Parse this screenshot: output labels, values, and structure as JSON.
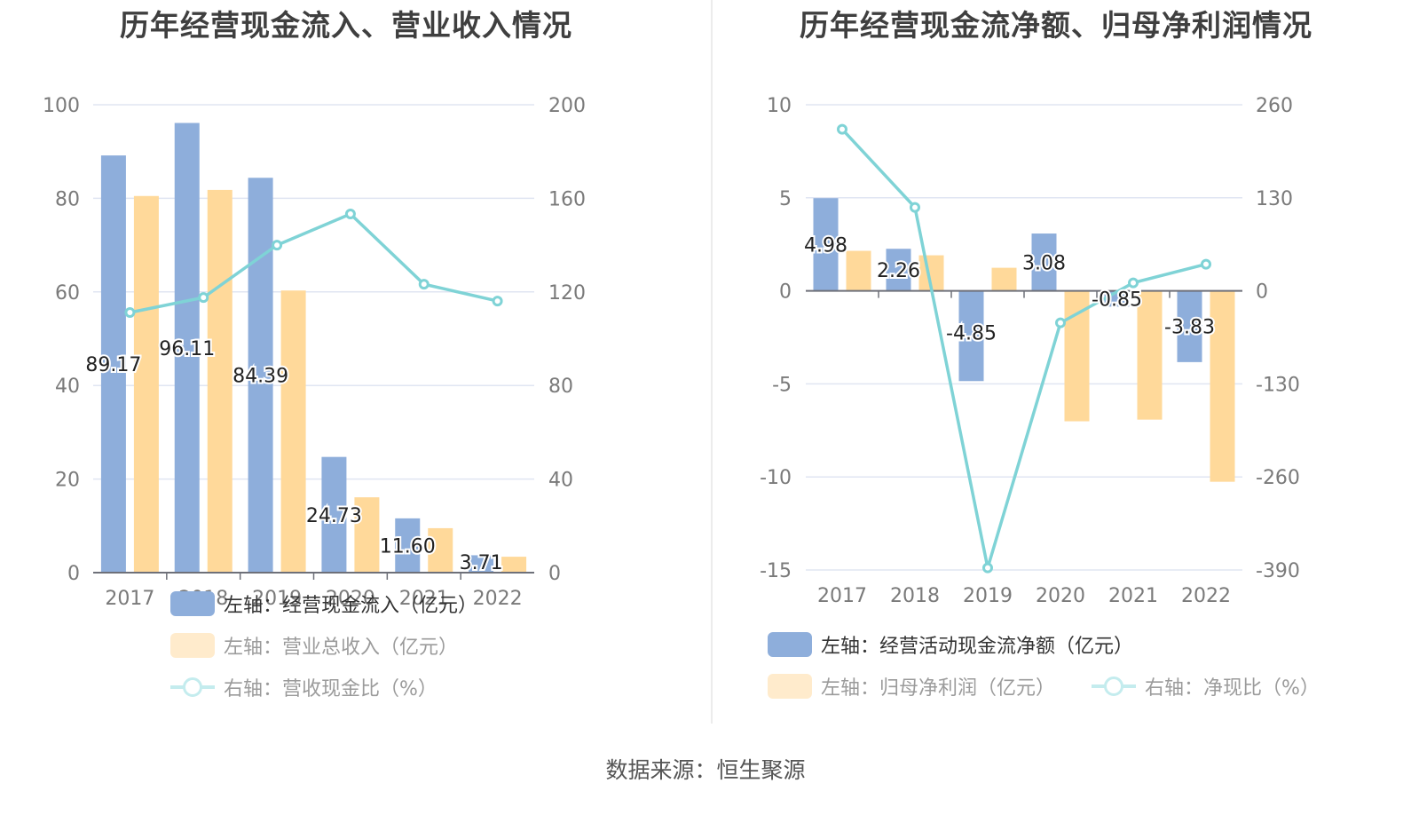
{
  "left_chart": {
    "title": "历年经营现金流入、营业收入情况",
    "legend": [
      {
        "label": "左轴：经营现金流入（亿元）",
        "color": "#8eaedb",
        "type": "bar",
        "active": true
      },
      {
        "label": "左轴：营业总收入（亿元）",
        "color": "#ffdb9d",
        "type": "bar",
        "active": false
      },
      {
        "label": "右轴：营收现金比（%）",
        "color": "#7fd3d6",
        "type": "line",
        "active": false
      }
    ]
  },
  "right_chart": {
    "title": "历年经营现金流净额、归母净利润情况",
    "legend": [
      {
        "label": "左轴：经营活动现金流净额（亿元）",
        "color": "#8eaedb",
        "type": "bar",
        "active": true
      },
      {
        "label": "左轴：归母净利润（亿元）",
        "color": "#ffdb9d",
        "type": "bar",
        "active": false
      },
      {
        "label": "右轴：净现比（%）",
        "color": "#7fd3d6",
        "type": "line",
        "active": false
      }
    ]
  },
  "footer": {
    "source": "数据来源：恒生聚源"
  },
  "colors": {
    "blue": "#8eaedb",
    "orange": "#ffd99a",
    "teal": "#7fd3d6",
    "grid": "#e0e5f2",
    "axis": "#6e7079"
  },
  "chart_data": [
    {
      "type": "bar",
      "title": "历年经营现金流入、营业收入情况",
      "categories": [
        "2017",
        "2018",
        "2019",
        "2020",
        "2021",
        "2022"
      ],
      "series": [
        {
          "name": "左轴：经营现金流入（亿元）",
          "axis": "left",
          "type": "bar",
          "values": [
            89.17,
            96.11,
            84.39,
            24.73,
            11.6,
            3.71
          ],
          "labels": [
            "89.17",
            "96.11",
            "84.39",
            "24.73",
            "11.60",
            "3.71"
          ]
        },
        {
          "name": "左轴：营业总收入（亿元）",
          "axis": "left",
          "type": "bar",
          "values": [
            80.5,
            81.8,
            60.3,
            16.1,
            9.5,
            3.4
          ]
        },
        {
          "name": "右轴：营收现金比（%）",
          "axis": "right",
          "type": "line",
          "values": [
            111.2,
            117.6,
            140.0,
            153.3,
            123.3,
            116.1
          ]
        }
      ],
      "left_axis": {
        "ticks": [
          "0",
          "20",
          "40",
          "60",
          "80",
          "100"
        ],
        "ylim": [
          0,
          100
        ]
      },
      "right_axis": {
        "ticks": [
          "0",
          "40",
          "80",
          "120",
          "160",
          "200"
        ],
        "ylim": [
          0,
          200
        ]
      },
      "grid": true,
      "legend_position": "bottom"
    },
    {
      "type": "bar",
      "title": "历年经营现金流净额、归母净利润情况",
      "categories": [
        "2017",
        "2018",
        "2019",
        "2020",
        "2021",
        "2022"
      ],
      "series": [
        {
          "name": "左轴：经营活动现金流净额（亿元）",
          "axis": "left",
          "type": "bar",
          "values": [
            4.98,
            2.26,
            -4.85,
            3.08,
            -0.85,
            -3.83
          ],
          "labels": [
            "4.98",
            "2.26",
            "-4.85",
            "3.08",
            "-0.85",
            "-3.83"
          ]
        },
        {
          "name": "左轴：归母净利润（亿元）",
          "axis": "left",
          "type": "bar",
          "values": [
            2.15,
            1.91,
            1.24,
            -7.01,
            -6.92,
            -10.26
          ]
        },
        {
          "name": "右轴：净现比（%）",
          "axis": "right",
          "type": "line",
          "values": [
            225.8,
            116.6,
            -387.0,
            -44.7,
            11.2,
            37.2
          ]
        }
      ],
      "left_axis": {
        "ticks": [
          "-15",
          "-10",
          "-5",
          "0",
          "5",
          "10"
        ],
        "ylim": [
          -15,
          10
        ]
      },
      "right_axis": {
        "ticks": [
          "-390",
          "-260",
          "-130",
          "0",
          "130",
          "260"
        ],
        "ylim": [
          -390,
          260
        ]
      },
      "grid": true,
      "legend_position": "bottom"
    }
  ]
}
